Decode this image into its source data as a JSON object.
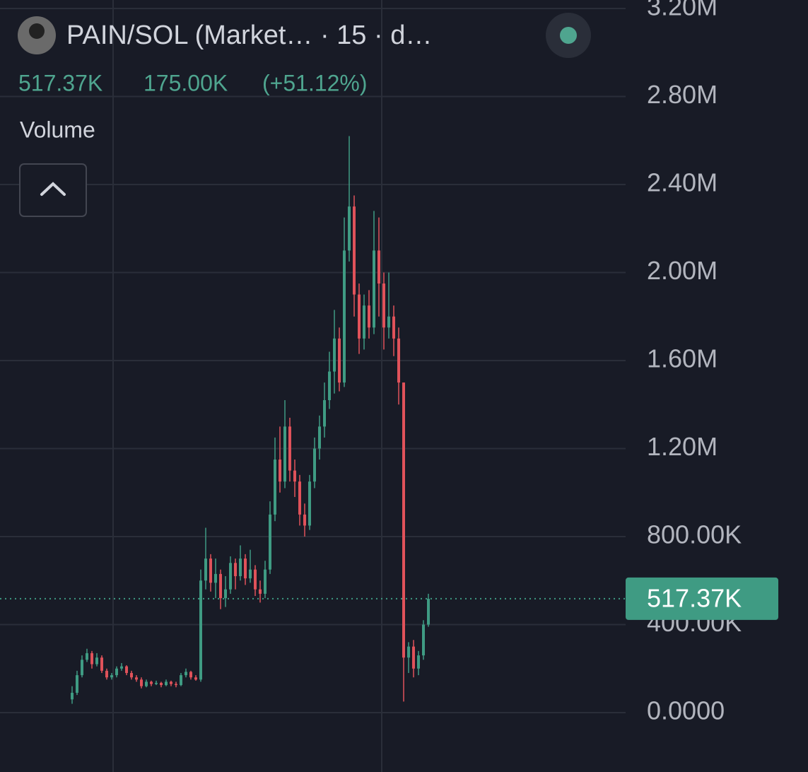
{
  "header": {
    "title": "PAIN/SOL (Market… · 15 · d…",
    "price": "517.37K",
    "change": "175.00K",
    "change_pct": "(+51.12%)",
    "indicator": "Volume"
  },
  "chart_data": {
    "type": "candlestick",
    "up_color": "#3f9b83",
    "down_color": "#e0525a",
    "grid": true,
    "ylim": [
      -270000,
      3238500
    ],
    "yticks": [
      {
        "value": 0,
        "label": "0.0000"
      },
      {
        "value": 400000,
        "label": "400.00K"
      },
      {
        "value": 800000,
        "label": "800.00K"
      },
      {
        "value": 1200000,
        "label": "1.20M"
      },
      {
        "value": 1600000,
        "label": "1.60M"
      },
      {
        "value": 2000000,
        "label": "2.00M"
      },
      {
        "value": 2400000,
        "label": "2.40M"
      },
      {
        "value": 2800000,
        "label": "2.80M"
      },
      {
        "value": 3200000,
        "label": "3.20M"
      }
    ],
    "last_price": {
      "value": 517370,
      "label": "517.37K"
    },
    "open": [
      60000,
      90000,
      170000,
      240000,
      270000,
      220000,
      250000,
      190000,
      160000,
      170000,
      200000,
      210000,
      180000,
      160000,
      150000,
      120000,
      140000,
      130000,
      135000,
      125000,
      140000,
      130000,
      125000,
      170000,
      185000,
      160000,
      150000,
      600000,
      700000,
      590000,
      630000,
      520000,
      560000,
      680000,
      620000,
      700000,
      610000,
      650000,
      560000,
      540000,
      650000,
      900000,
      1150000,
      1050000,
      1300000,
      1100000,
      1050000,
      900000,
      850000,
      1050000,
      1200000,
      1300000,
      1420000,
      1550000,
      1700000,
      1500000,
      2100000,
      2300000,
      1900000,
      1700000,
      1850000,
      1750000,
      2100000,
      1950000,
      1750000,
      1800000,
      1700000,
      1500000,
      250000,
      300000,
      200000,
      260000,
      400000
    ],
    "high": [
      120000,
      190000,
      260000,
      290000,
      280000,
      270000,
      260000,
      200000,
      180000,
      210000,
      225000,
      215000,
      190000,
      170000,
      160000,
      150000,
      145000,
      145000,
      140000,
      150000,
      145000,
      140000,
      180000,
      200000,
      190000,
      170000,
      650000,
      840000,
      720000,
      700000,
      650000,
      620000,
      710000,
      700000,
      760000,
      720000,
      740000,
      670000,
      600000,
      690000,
      960000,
      1250000,
      1300000,
      1420000,
      1340000,
      1150000,
      1080000,
      950000,
      1080000,
      1250000,
      1350000,
      1500000,
      1640000,
      1830000,
      1750000,
      2250000,
      2620000,
      2350000,
      1950000,
      1900000,
      1920000,
      2280000,
      2250000,
      2000000,
      2000000,
      1850000,
      1750000,
      1500000,
      320000,
      330000,
      280000,
      420000,
      540000
    ],
    "low": [
      40000,
      80000,
      160000,
      230000,
      200000,
      210000,
      180000,
      150000,
      150000,
      160000,
      190000,
      170000,
      150000,
      140000,
      110000,
      115000,
      120000,
      125000,
      115000,
      120000,
      120000,
      115000,
      120000,
      160000,
      150000,
      145000,
      140000,
      560000,
      550000,
      520000,
      470000,
      480000,
      540000,
      560000,
      600000,
      580000,
      590000,
      530000,
      500000,
      520000,
      630000,
      870000,
      1000000,
      1020000,
      1050000,
      980000,
      850000,
      800000,
      830000,
      1020000,
      1150000,
      1250000,
      1380000,
      1450000,
      1460000,
      1480000,
      2050000,
      1800000,
      1630000,
      1650000,
      1700000,
      1720000,
      1800000,
      1650000,
      1700000,
      1620000,
      1400000,
      50000,
      180000,
      160000,
      170000,
      240000,
      390000
    ],
    "close": [
      90000,
      170000,
      240000,
      270000,
      220000,
      250000,
      190000,
      160000,
      170000,
      200000,
      210000,
      180000,
      160000,
      150000,
      120000,
      140000,
      130000,
      135000,
      125000,
      140000,
      130000,
      125000,
      170000,
      185000,
      160000,
      150000,
      600000,
      700000,
      590000,
      630000,
      520000,
      560000,
      680000,
      620000,
      700000,
      610000,
      650000,
      560000,
      540000,
      650000,
      900000,
      1150000,
      1050000,
      1300000,
      1100000,
      1050000,
      900000,
      850000,
      1050000,
      1200000,
      1300000,
      1420000,
      1550000,
      1700000,
      1500000,
      2100000,
      2300000,
      1900000,
      1700000,
      1850000,
      1750000,
      2100000,
      1950000,
      1750000,
      1800000,
      1700000,
      1500000,
      250000,
      300000,
      200000,
      260000,
      400000,
      517370
    ]
  }
}
